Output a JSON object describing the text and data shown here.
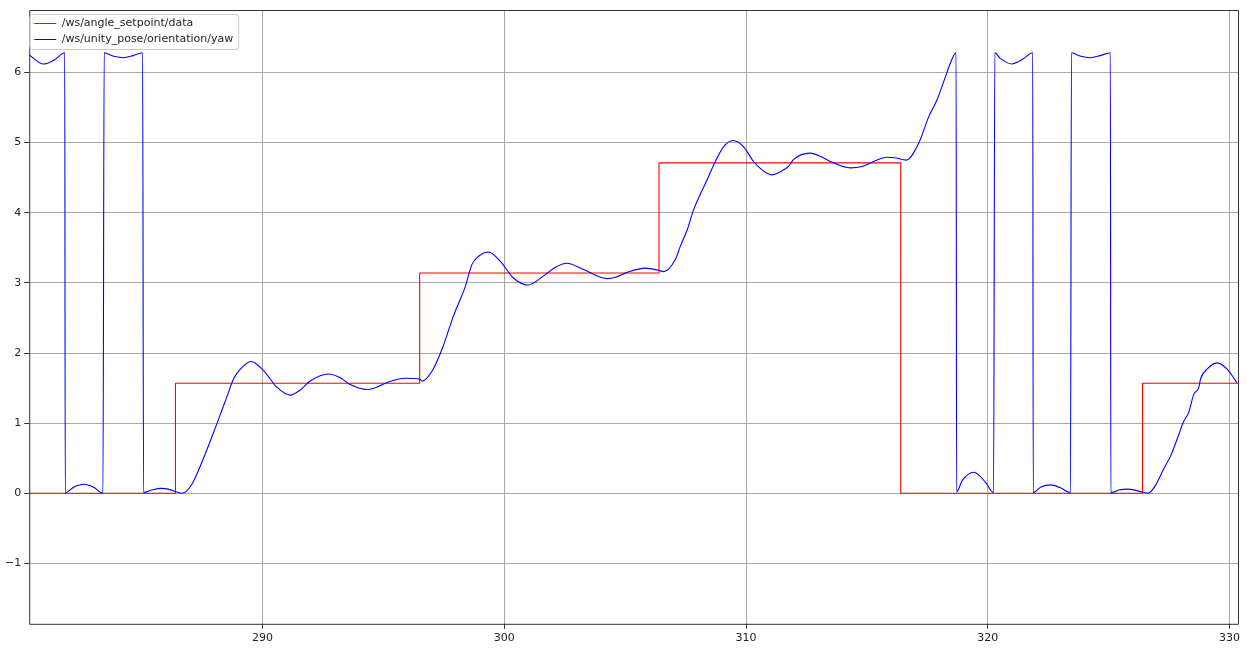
{
  "chart_data": {
    "type": "line",
    "xlim": [
      280.35,
      330.35
    ],
    "ylim": [
      -1.86,
      6.89
    ],
    "xticks": [
      290,
      300,
      310,
      320,
      330
    ],
    "yticks": [
      {
        "value": -1,
        "label": "−1"
      },
      0,
      1,
      2,
      3,
      4,
      5,
      6
    ],
    "grid": true,
    "legend": "top left",
    "marker": "none",
    "line_style": "solid",
    "series": [
      {
        "name": "/ws/angle_setpoint/data",
        "color": "#ff0000",
        "type": "step",
        "x": [
          280.35,
          286.4,
          296.5,
          306.4,
          316.4,
          326.4,
          330.35
        ],
        "values": [
          0,
          1.57,
          3.14,
          4.71,
          0,
          1.57,
          1.57
        ]
      },
      {
        "name": "/ws/unity_pose/orientation/yaw",
        "color": "#0000ff",
        "type": "line",
        "x": [
          280.35,
          280.94,
          281.4,
          281.82,
          281.84,
          282.2,
          282.59,
          283.0,
          283.4,
          283.45,
          283.85,
          284.25,
          284.65,
          285.04,
          285.08,
          285.45,
          285.81,
          286.1,
          286.36,
          286.67,
          287.08,
          287.56,
          288.11,
          288.5,
          288.8,
          289.08,
          289.52,
          290.04,
          290.6,
          291.15,
          291.55,
          291.97,
          292.73,
          293.2,
          293.63,
          294.32,
          294.7,
          295.15,
          295.9,
          296.5,
          296.6,
          297.01,
          297.42,
          297.9,
          298.39,
          298.66,
          298.94,
          299.35,
          299.83,
          300.38,
          300.98,
          301.63,
          302.1,
          302.59,
          303.28,
          304.25,
          304.6,
          305.08,
          305.83,
          306.38,
          306.59,
          307.07,
          307.28,
          307.56,
          307.83,
          308.39,
          308.73,
          309.07,
          309.46,
          309.9,
          310.31,
          310.7,
          311.08,
          311.4,
          311.76,
          311.97,
          312.66,
          313.1,
          313.49,
          314.32,
          314.8,
          315.28,
          315.83,
          316.2,
          316.63,
          317.14,
          317.56,
          317.9,
          318.25,
          318.45,
          318.69,
          318.71,
          318.94,
          319.42,
          319.9,
          320.24,
          320.29,
          320.52,
          321.0,
          321.45,
          321.86,
          321.88,
          322.2,
          322.59,
          323.0,
          323.42,
          323.46,
          323.85,
          324.24,
          324.65,
          325.07,
          325.09,
          325.45,
          325.8,
          326.38,
          326.62,
          326.93,
          327.28,
          327.56,
          327.83,
          328.11,
          328.31,
          328.52,
          328.73,
          328.8,
          329.07,
          329.49,
          329.9,
          330.3
        ],
        "values": [
          6.25,
          6.12,
          6.18,
          6.28,
          0.01,
          0.09,
          0.13,
          0.09,
          0.0,
          6.28,
          6.23,
          6.21,
          6.24,
          6.28,
          0.01,
          0.05,
          0.07,
          0.06,
          0.03,
          0.0,
          0.13,
          0.5,
          0.99,
          1.35,
          1.63,
          1.77,
          1.88,
          1.75,
          1.51,
          1.4,
          1.47,
          1.6,
          1.7,
          1.65,
          1.55,
          1.48,
          1.51,
          1.58,
          1.64,
          1.63,
          1.6,
          1.74,
          2.05,
          2.53,
          2.95,
          3.26,
          3.38,
          3.44,
          3.31,
          3.07,
          2.97,
          3.1,
          3.22,
          3.28,
          3.19,
          3.06,
          3.08,
          3.15,
          3.21,
          3.18,
          3.16,
          3.33,
          3.52,
          3.75,
          4.04,
          4.47,
          4.73,
          4.94,
          5.03,
          4.94,
          4.73,
          4.6,
          4.54,
          4.58,
          4.66,
          4.76,
          4.85,
          4.8,
          4.73,
          4.64,
          4.66,
          4.73,
          4.79,
          4.78,
          4.75,
          4.99,
          5.37,
          5.61,
          5.94,
          6.13,
          6.28,
          0.02,
          0.18,
          0.3,
          0.16,
          0.01,
          6.28,
          6.2,
          6.12,
          6.19,
          6.28,
          0.01,
          0.09,
          0.12,
          0.08,
          0.01,
          6.28,
          6.23,
          6.21,
          6.24,
          6.28,
          0.01,
          0.05,
          0.06,
          0.02,
          0.0,
          0.11,
          0.35,
          0.53,
          0.77,
          1.03,
          1.15,
          1.41,
          1.51,
          1.63,
          1.77,
          1.86,
          1.77,
          1.58
        ]
      }
    ]
  }
}
